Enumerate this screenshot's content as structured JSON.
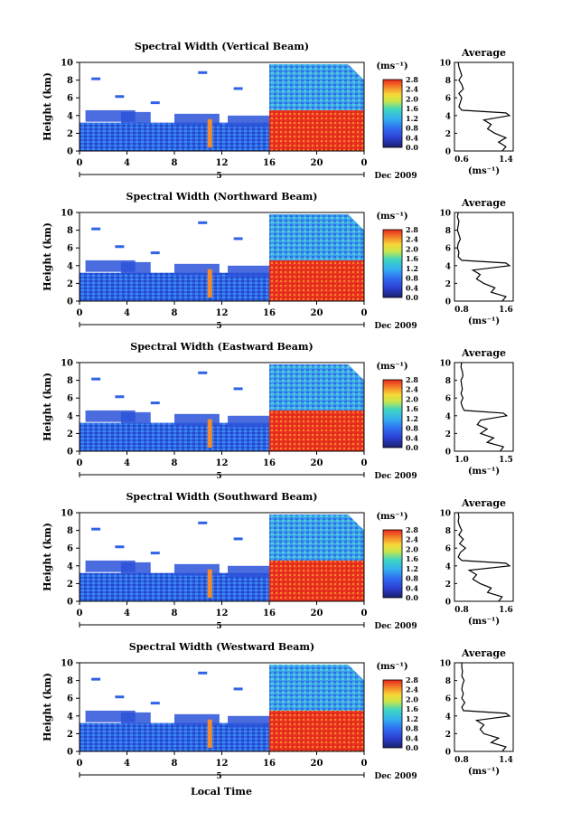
{
  "figure": {
    "common_xlabel": "Local Time",
    "date_label": "Dec 2009",
    "date_day": "5",
    "colorbar_unit": "(ms⁻¹)",
    "average_title": "Average"
  },
  "chart_data": [
    {
      "type": "heatmap",
      "title": "Spectral Width (Vertical Beam)",
      "xlabel": "",
      "ylabel": "Height (km)",
      "xlim": [
        0,
        24
      ],
      "ylim": [
        0,
        10
      ],
      "xticks": [
        "0",
        "4",
        "8",
        "12",
        "16",
        "20",
        "0"
      ],
      "yticks": [
        "0",
        "2",
        "4",
        "6",
        "8",
        "10"
      ],
      "colorbar": {
        "unit": "(ms⁻¹)",
        "ticks": [
          "0.0",
          "0.4",
          "0.8",
          "1.2",
          "1.6",
          "2.0",
          "2.4",
          "2.8"
        ],
        "range": [
          0,
          2.8
        ]
      },
      "description_values": {
        "below_4_5km_before_16h": "0.4-0.8",
        "below_4_5km_after_16h": "2.4-2.8",
        "above_4_5km_after_16h": "0.8-1.6"
      },
      "average_profile": {
        "xlim": [
          0.6,
          1.4
        ],
        "xticks": [
          "0.6",
          "1.4"
        ],
        "xlabel": "(ms⁻¹)",
        "height": [
          0,
          0.5,
          1,
          1.5,
          2,
          2.5,
          3,
          3.5,
          4,
          4.3,
          4.6,
          5,
          5.5,
          6,
          6.5,
          7,
          7.5,
          8,
          8.5,
          9,
          9.5,
          10
        ],
        "value": [
          1.25,
          1.3,
          1.2,
          1.3,
          1.15,
          1.05,
          1.1,
          1.0,
          1.35,
          1.3,
          0.7,
          0.66,
          0.68,
          0.7,
          0.66,
          0.72,
          0.7,
          0.66,
          0.7,
          0.68,
          0.66,
          0.65
        ]
      }
    },
    {
      "type": "heatmap",
      "title": "Spectral Width (Northward Beam)",
      "xlabel": "",
      "ylabel": "Height (km)",
      "xlim": [
        0,
        24
      ],
      "ylim": [
        0,
        10
      ],
      "xticks": [
        "0",
        "4",
        "8",
        "12",
        "16",
        "20",
        "0"
      ],
      "yticks": [
        "0",
        "2",
        "4",
        "6",
        "8",
        "10"
      ],
      "colorbar": {
        "unit": "(ms⁻¹)",
        "ticks": [
          "0.0",
          "0.4",
          "0.8",
          "1.2",
          "1.6",
          "2.0",
          "2.4",
          "2.8"
        ],
        "range": [
          0,
          2.8
        ]
      },
      "average_profile": {
        "xlim": [
          0.8,
          1.6
        ],
        "xticks": [
          "0.8",
          "1.6"
        ],
        "xlabel": "(ms⁻¹)",
        "height": [
          0,
          0.5,
          1,
          1.5,
          2,
          2.5,
          3,
          3.5,
          4,
          4.3,
          4.6,
          5,
          5.5,
          6,
          6.5,
          7,
          7.5,
          8,
          8.5,
          9,
          9.5,
          10
        ],
        "value": [
          1.45,
          1.5,
          1.3,
          1.35,
          1.2,
          1.1,
          1.15,
          1.05,
          1.55,
          1.5,
          0.9,
          0.85,
          0.86,
          0.84,
          0.85,
          0.88,
          0.86,
          0.84,
          0.85,
          0.86,
          0.84,
          0.85
        ]
      }
    },
    {
      "type": "heatmap",
      "title": "Spectral Width (Eastward Beam)",
      "xlabel": "",
      "ylabel": "Height (km)",
      "xlim": [
        0,
        24
      ],
      "ylim": [
        0,
        10
      ],
      "xticks": [
        "0",
        "4",
        "8",
        "12",
        "16",
        "20",
        "0"
      ],
      "yticks": [
        "0",
        "2",
        "4",
        "6",
        "8",
        "10"
      ],
      "colorbar": {
        "unit": "(ms⁻¹)",
        "ticks": [
          "0.0",
          "0.4",
          "0.8",
          "1.2",
          "1.6",
          "2.0",
          "2.4",
          "2.8"
        ],
        "range": [
          0,
          2.8
        ]
      },
      "average_profile": {
        "xlim": [
          0.6,
          1.5
        ],
        "xticks": [
          "1.0",
          "1.5"
        ],
        "xlabel": "(ms⁻¹)",
        "height": [
          0,
          0.5,
          1,
          1.5,
          2,
          2.5,
          3,
          3.5,
          4,
          4.3,
          4.6,
          5,
          5.5,
          6,
          6.5,
          7,
          7.5,
          8,
          8.5,
          9,
          9.5,
          10
        ],
        "value": [
          1.3,
          1.35,
          1.1,
          1.2,
          1.0,
          1.1,
          0.95,
          1.0,
          1.4,
          1.35,
          0.75,
          0.72,
          0.7,
          0.73,
          0.7,
          0.72,
          0.71,
          0.7,
          0.73,
          0.72,
          0.7,
          0.71
        ]
      }
    },
    {
      "type": "heatmap",
      "title": "Spectral Width (Southward Beam)",
      "xlabel": "",
      "ylabel": "Height (km)",
      "xlim": [
        0,
        24
      ],
      "ylim": [
        0,
        10
      ],
      "xticks": [
        "0",
        "4",
        "8",
        "12",
        "16",
        "20",
        "0"
      ],
      "yticks": [
        "0",
        "2",
        "4",
        "6",
        "8",
        "10"
      ],
      "colorbar": {
        "unit": "(ms⁻¹)",
        "ticks": [
          "0.0",
          "0.4",
          "0.8",
          "1.2",
          "1.6",
          "2.0",
          "2.4",
          "2.8"
        ],
        "range": [
          0,
          2.8
        ]
      },
      "average_profile": {
        "xlim": [
          0.8,
          1.6
        ],
        "xticks": [
          "0.8",
          "1.6"
        ],
        "xlabel": "(ms⁻¹)",
        "height": [
          0,
          0.5,
          1,
          1.5,
          2,
          2.5,
          3,
          3.5,
          4,
          4.3,
          4.6,
          5,
          5.5,
          6,
          6.5,
          7,
          7.5,
          8,
          8.5,
          9,
          9.5,
          10
        ],
        "value": [
          1.4,
          1.45,
          1.25,
          1.3,
          1.15,
          1.05,
          1.1,
          1.0,
          1.55,
          1.5,
          0.9,
          0.85,
          0.88,
          0.95,
          0.87,
          0.92,
          0.86,
          0.9,
          0.87,
          0.85,
          0.86,
          0.85
        ]
      }
    },
    {
      "type": "heatmap",
      "title": "Spectral Width (Westward Beam)",
      "xlabel": "",
      "ylabel": "Height (km)",
      "xlim": [
        0,
        24
      ],
      "ylim": [
        0,
        10
      ],
      "xticks": [
        "0",
        "4",
        "8",
        "12",
        "16",
        "20",
        "0"
      ],
      "yticks": [
        "0",
        "2",
        "4",
        "6",
        "8",
        "10"
      ],
      "colorbar": {
        "unit": "(ms⁻¹)",
        "ticks": [
          "0.0",
          "0.4",
          "0.8",
          "1.2",
          "1.6",
          "2.0",
          "2.4",
          "2.8"
        ],
        "range": [
          0,
          2.8
        ]
      },
      "average_profile": {
        "xlim": [
          0.6,
          1.4
        ],
        "xticks": [
          "0.8",
          "1.4"
        ],
        "xlabel": "(ms⁻¹)",
        "height": [
          0,
          0.5,
          1,
          1.5,
          2,
          2.5,
          3,
          3.5,
          4,
          4.3,
          4.6,
          5,
          5.5,
          6,
          6.5,
          7,
          7.5,
          8,
          8.5,
          9,
          9.5,
          10
        ],
        "value": [
          1.25,
          1.3,
          1.1,
          1.2,
          1.0,
          0.95,
          1.0,
          0.9,
          1.35,
          1.3,
          0.72,
          0.7,
          0.74,
          0.7,
          0.72,
          0.7,
          0.71,
          0.73,
          0.7,
          0.71,
          0.7,
          0.7
        ]
      }
    }
  ]
}
